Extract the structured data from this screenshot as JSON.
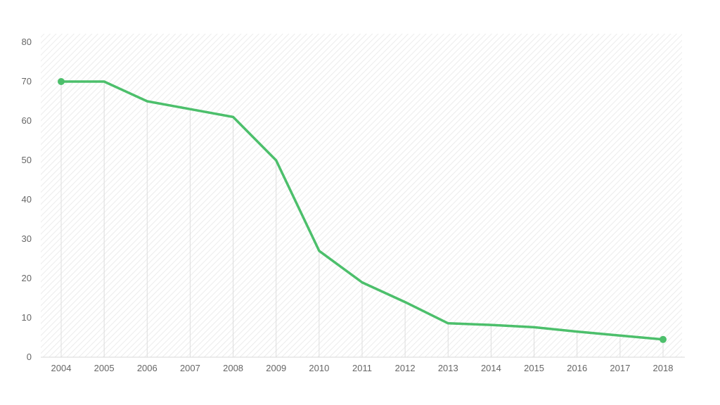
{
  "chart_data": {
    "type": "line",
    "title": "",
    "xlabel": "",
    "ylabel": "",
    "x": [
      "2004",
      "2005",
      "2006",
      "2007",
      "2008",
      "2009",
      "2010",
      "2011",
      "2012",
      "2013",
      "2014",
      "2015",
      "2016",
      "2017",
      "2018"
    ],
    "series": [
      {
        "values": [
          70,
          70,
          65,
          63,
          61,
          50,
          27,
          19,
          14,
          8.6,
          8.2,
          7.6,
          6.5,
          5.5,
          4.5
        ],
        "color": "#4cbf6b"
      }
    ],
    "ylim": [
      0,
      80
    ],
    "yticks": [
      "0",
      "10",
      "20",
      "30",
      "40",
      "50",
      "60",
      "70",
      "80"
    ],
    "grid": "vertical",
    "background": "diagonal-hatch",
    "endpoint_markers": true,
    "legend": "none"
  }
}
